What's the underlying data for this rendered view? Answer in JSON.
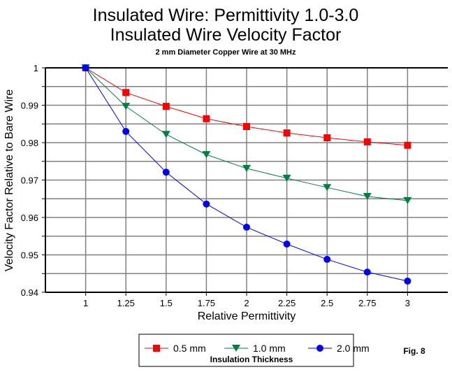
{
  "chart_data": {
    "type": "line",
    "title": "Insulated Wire:  Permittivity 1.0-3.0",
    "title2": "Insulated Wire Velocity Factor",
    "subtitle": "2 mm Diameter Copper Wire at 30 MHz",
    "xlabel": "Relative Permittivity",
    "ylabel": "Velocity Factor Relative to Bare Wire",
    "x": [
      1,
      1.25,
      1.5,
      1.75,
      2,
      2.25,
      2.5,
      2.75,
      3
    ],
    "x_tick_labels": [
      "1",
      "1.25",
      "1.5",
      "1.75",
      "2",
      "2.25",
      "2.5",
      "2.75",
      "3"
    ],
    "y_tick_labels": [
      "1",
      "0.99",
      "0.98",
      "0.97",
      "0.96",
      "0.95",
      "0.94"
    ],
    "xlim": [
      0.75,
      3.25
    ],
    "ylim": [
      0.94,
      1.0
    ],
    "grid": true,
    "legend_title": "Insulation Thickness",
    "legend_position": "bottom",
    "series": [
      {
        "name": "0.5 mm",
        "color": "#ff0000",
        "marker": "square",
        "values": [
          1.0,
          0.9934,
          0.9897,
          0.9864,
          0.9843,
          0.9826,
          0.9813,
          0.9802,
          0.9793
        ]
      },
      {
        "name": "1.0 mm",
        "color": "#008040",
        "marker": "triangle-down",
        "values": [
          1.0,
          0.9897,
          0.9822,
          0.9768,
          0.9731,
          0.9705,
          0.968,
          0.9656,
          0.9645
        ]
      },
      {
        "name": "2.0 mm",
        "color": "#0000ff",
        "marker": "circle",
        "values": [
          1.0,
          0.983,
          0.9721,
          0.9636,
          0.9574,
          0.9529,
          0.9488,
          0.9454,
          0.943
        ]
      }
    ],
    "annotation": "Fig. 8"
  }
}
